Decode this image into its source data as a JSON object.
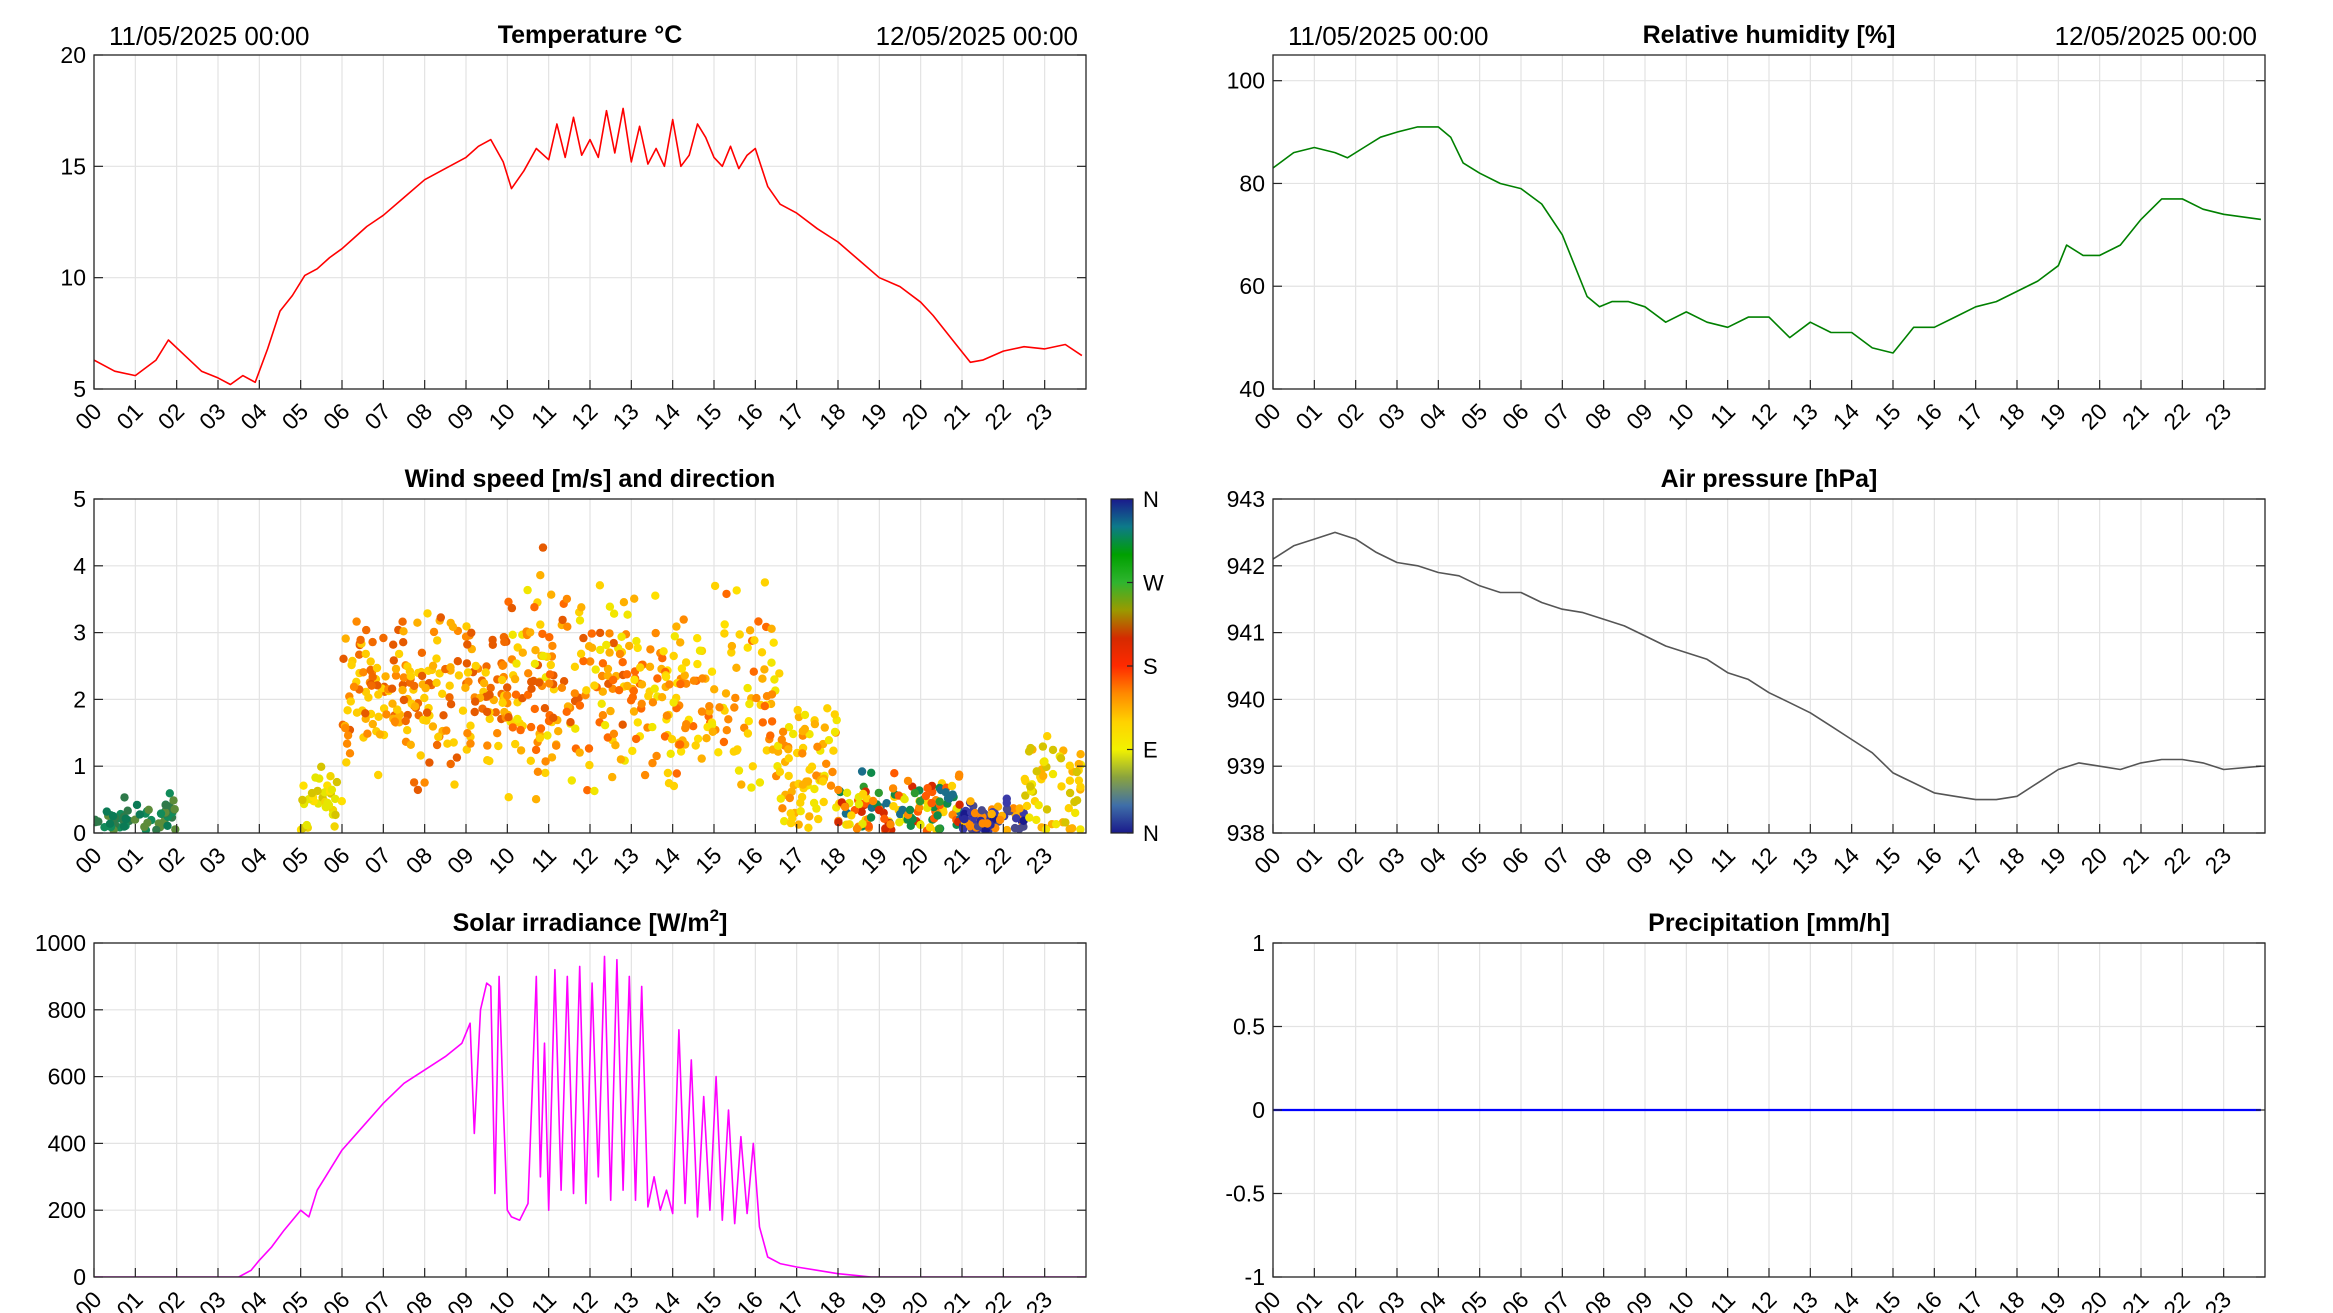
{
  "hour_labels": [
    "00",
    "01",
    "02",
    "03",
    "04",
    "05",
    "06",
    "07",
    "08",
    "09",
    "10",
    "11",
    "12",
    "13",
    "14",
    "15",
    "16",
    "17",
    "18",
    "19",
    "20",
    "21",
    "22",
    "23"
  ],
  "chart_data": [
    {
      "id": "temperature",
      "type": "line",
      "title": "Temperature °C",
      "date_start": "11/05/2025 00:00",
      "date_end": "12/05/2025 00:00",
      "color": "#ff0000",
      "ylim": [
        5,
        20
      ],
      "yticks": [
        5,
        10,
        15,
        20
      ],
      "x_hours": [
        0,
        0.5,
        1,
        1.5,
        1.8,
        2.2,
        2.6,
        3,
        3.3,
        3.6,
        3.9,
        4.2,
        4.5,
        4.8,
        5.1,
        5.4,
        5.7,
        6,
        6.3,
        6.6,
        7,
        7.5,
        8,
        8.5,
        9,
        9.3,
        9.6,
        9.9,
        10.1,
        10.4,
        10.7,
        11,
        11.2,
        11.4,
        11.6,
        11.8,
        12,
        12.2,
        12.4,
        12.6,
        12.8,
        13,
        13.2,
        13.4,
        13.6,
        13.8,
        14,
        14.2,
        14.4,
        14.6,
        14.8,
        15,
        15.2,
        15.4,
        15.6,
        15.8,
        16,
        16.3,
        16.6,
        17,
        17.5,
        18,
        18.5,
        19,
        19.5,
        20,
        20.3,
        20.6,
        20.9,
        21.2,
        21.5,
        22,
        22.5,
        23,
        23.5,
        23.9
      ],
      "values": [
        6.3,
        5.8,
        5.6,
        6.3,
        7.2,
        6.5,
        5.8,
        5.5,
        5.2,
        5.6,
        5.3,
        6.8,
        8.5,
        9.2,
        10.1,
        10.4,
        10.9,
        11.3,
        11.8,
        12.3,
        12.8,
        13.6,
        14.4,
        14.9,
        15.4,
        15.9,
        16.2,
        15.2,
        14.0,
        14.8,
        15.8,
        15.3,
        16.9,
        15.4,
        17.2,
        15.5,
        16.2,
        15.4,
        17.5,
        15.6,
        17.6,
        15.2,
        16.8,
        15.1,
        15.8,
        15.0,
        17.1,
        15.0,
        15.5,
        16.9,
        16.3,
        15.4,
        15.0,
        15.9,
        14.9,
        15.5,
        15.8,
        14.1,
        13.3,
        12.9,
        12.2,
        11.6,
        10.8,
        10.0,
        9.6,
        8.9,
        8.3,
        7.6,
        6.9,
        6.2,
        6.3,
        6.7,
        6.9,
        6.8,
        7.0,
        6.5
      ]
    },
    {
      "id": "humidity",
      "type": "line",
      "title": "Relative humidity [%]",
      "date_start": "11/05/2025 00:00",
      "date_end": "12/05/2025 00:00",
      "color": "#008000",
      "ylim": [
        40,
        105
      ],
      "yticks": [
        40,
        60,
        80,
        100
      ],
      "x_hours": [
        0,
        0.5,
        1,
        1.5,
        1.8,
        2.2,
        2.6,
        3,
        3.5,
        4,
        4.3,
        4.6,
        5,
        5.5,
        6,
        6.5,
        7,
        7.3,
        7.6,
        7.9,
        8.2,
        8.6,
        9,
        9.5,
        10,
        10.5,
        11,
        11.5,
        12,
        12.5,
        13,
        13.5,
        14,
        14.5,
        15,
        15.5,
        16,
        16.5,
        17,
        17.5,
        18,
        18.5,
        19,
        19.2,
        19.6,
        20,
        20.5,
        21,
        21.5,
        22,
        22.5,
        23,
        23.9
      ],
      "values": [
        83,
        86,
        87,
        86,
        85,
        87,
        89,
        90,
        91,
        91,
        89,
        84,
        82,
        80,
        79,
        76,
        70,
        64,
        58,
        56,
        57,
        57,
        56,
        53,
        55,
        53,
        52,
        54,
        54,
        50,
        53,
        51,
        51,
        48,
        47,
        52,
        52,
        54,
        56,
        57,
        59,
        61,
        64,
        68,
        66,
        66,
        68,
        73,
        77,
        77,
        75,
        74,
        73
      ]
    },
    {
      "id": "wind",
      "type": "scatter",
      "title": "Wind speed [m/s] and direction",
      "ylim": [
        0,
        5
      ],
      "yticks": [
        0,
        1,
        2,
        3,
        4,
        5
      ],
      "colorbar_labels": [
        "N",
        "E",
        "S",
        "W",
        "N"
      ],
      "colorbar_colors": [
        "#1a1a8c",
        "#3f6fa8",
        "#8aa33e",
        "#f2f200",
        "#ffd200",
        "#ff8a00",
        "#ff2a00",
        "#d52a00",
        "#9a9a00",
        "#2fb52f",
        "#00a000",
        "#0d7a8a",
        "#1a1a8c"
      ],
      "clusters": [
        {
          "x_range": [
            0,
            2
          ],
          "mean": 0.25,
          "spread": 0.15,
          "n": 60,
          "palette": [
            "#0b7a55",
            "#118b5a",
            "#2f7a4a",
            "#5c8c3a"
          ]
        },
        {
          "x_range": [
            5,
            6
          ],
          "mean": 0.55,
          "spread": 0.3,
          "n": 35,
          "palette": [
            "#e6e600",
            "#f2d500",
            "#d6c400",
            "#ffe000"
          ]
        },
        {
          "x_range": [
            6,
            8
          ],
          "mean": 2.0,
          "spread": 0.55,
          "n": 120,
          "palette": [
            "#ff8a00",
            "#ffb000",
            "#f26a00",
            "#ffd200",
            "#e65a00",
            "#ffcc00"
          ]
        },
        {
          "x_range": [
            8,
            10
          ],
          "mean": 2.2,
          "spread": 0.6,
          "n": 110,
          "palette": [
            "#ff8a00",
            "#ffb000",
            "#f26a00",
            "#ffd200",
            "#e65a00",
            "#ffcc00"
          ]
        },
        {
          "x_range": [
            10,
            13
          ],
          "mean": 2.2,
          "spread": 0.75,
          "n": 170,
          "palette": [
            "#ffb000",
            "#ffd200",
            "#ff8a00",
            "#f2e600",
            "#e65a00",
            "#ff6a00"
          ]
        },
        {
          "x_range": [
            13,
            16.5
          ],
          "mean": 2.1,
          "spread": 0.65,
          "n": 170,
          "palette": [
            "#ffd200",
            "#ffb000",
            "#ff8a00",
            "#f2e600",
            "#ff6a00",
            "#ffe000"
          ]
        },
        {
          "x_range": [
            16.5,
            18
          ],
          "mean": 1.0,
          "spread": 0.55,
          "n": 80,
          "palette": [
            "#ffd200",
            "#ffb000",
            "#ff8a00",
            "#f2e600"
          ]
        },
        {
          "x_range": [
            18,
            21
          ],
          "mean": 0.35,
          "spread": 0.25,
          "n": 140,
          "palette": [
            "#ff8a00",
            "#2f9a2f",
            "#1a6e8a",
            "#ffd200",
            "#d52a00",
            "#0f8a4a",
            "#e6e600",
            "#ff5a00"
          ]
        },
        {
          "x_range": [
            21,
            22.5
          ],
          "mean": 0.2,
          "spread": 0.15,
          "n": 80,
          "palette": [
            "#1a1a8c",
            "#2a2a9c",
            "#ff8a00",
            "#ffb000",
            "#3a3aa8",
            "#4a4a8c"
          ]
        },
        {
          "x_range": [
            22.5,
            23.9
          ],
          "mean": 0.75,
          "spread": 0.4,
          "n": 60,
          "palette": [
            "#ffd200",
            "#f2e600",
            "#ffb000",
            "#d6c400"
          ]
        }
      ]
    },
    {
      "id": "pressure",
      "type": "line",
      "title": "Air pressure [hPa]",
      "color": "#555555",
      "ylim": [
        938,
        943
      ],
      "yticks": [
        938,
        939,
        940,
        941,
        942,
        943
      ],
      "x_hours": [
        0,
        0.5,
        1,
        1.5,
        2,
        2.5,
        3,
        3.5,
        4,
        4.5,
        5,
        5.5,
        6,
        6.5,
        7,
        7.5,
        8,
        8.5,
        9,
        9.5,
        10,
        10.5,
        11,
        11.5,
        12,
        12.5,
        13,
        13.5,
        14,
        14.5,
        15,
        15.5,
        16,
        16.5,
        17,
        17.5,
        18,
        18.5,
        19,
        19.5,
        20,
        20.5,
        21,
        21.5,
        22,
        22.5,
        23,
        23.9
      ],
      "values": [
        942.1,
        942.3,
        942.4,
        942.5,
        942.4,
        942.2,
        942.05,
        942.0,
        941.9,
        941.85,
        941.7,
        941.6,
        941.6,
        941.45,
        941.35,
        941.3,
        941.2,
        941.1,
        940.95,
        940.8,
        940.7,
        940.6,
        940.4,
        940.3,
        940.1,
        939.95,
        939.8,
        939.6,
        939.4,
        939.2,
        938.9,
        938.75,
        938.6,
        938.55,
        938.5,
        938.5,
        938.55,
        938.75,
        938.95,
        939.05,
        939.0,
        938.95,
        939.05,
        939.1,
        939.1,
        939.05,
        938.95,
        939.0
      ]
    },
    {
      "id": "solar",
      "type": "line",
      "title": "Solar irradiance [W/m",
      "title_superscript": "2",
      "title_suffix": "]",
      "color": "#ff00ff",
      "ylim": [
        0,
        1000
      ],
      "yticks": [
        0,
        200,
        400,
        600,
        800,
        1000
      ],
      "x_hours": [
        0,
        3.5,
        3.8,
        4,
        4.3,
        4.6,
        5,
        5.2,
        5.4,
        5.6,
        6,
        6.5,
        7,
        7.5,
        8,
        8.5,
        8.9,
        9.1,
        9.2,
        9.35,
        9.5,
        9.6,
        9.7,
        9.8,
        9.9,
        10,
        10.1,
        10.3,
        10.5,
        10.6,
        10.7,
        10.8,
        10.9,
        11,
        11.15,
        11.3,
        11.45,
        11.6,
        11.75,
        11.9,
        12.05,
        12.2,
        12.35,
        12.5,
        12.65,
        12.8,
        12.95,
        13.1,
        13.25,
        13.4,
        13.55,
        13.7,
        13.85,
        14,
        14.15,
        14.3,
        14.45,
        14.6,
        14.75,
        14.9,
        15.05,
        15.2,
        15.35,
        15.5,
        15.65,
        15.8,
        15.95,
        16.1,
        16.3,
        16.6,
        17,
        17.5,
        18,
        18.4,
        18.8,
        19.5,
        24
      ],
      "values": [
        0,
        0,
        20,
        50,
        90,
        140,
        200,
        180,
        260,
        300,
        380,
        450,
        520,
        580,
        620,
        660,
        700,
        760,
        430,
        800,
        880,
        870,
        250,
        900,
        520,
        200,
        180,
        170,
        220,
        550,
        900,
        300,
        700,
        200,
        920,
        260,
        900,
        250,
        930,
        220,
        880,
        300,
        960,
        230,
        950,
        260,
        900,
        230,
        870,
        210,
        300,
        200,
        260,
        190,
        740,
        220,
        650,
        180,
        540,
        200,
        600,
        170,
        500,
        160,
        420,
        190,
        400,
        150,
        60,
        40,
        30,
        20,
        10,
        5,
        0,
        0,
        0
      ]
    },
    {
      "id": "precipitation",
      "type": "line",
      "title": "Precipitation [mm/h]",
      "color": "#0000ff",
      "ylim": [
        -1,
        1
      ],
      "yticks": [
        -1,
        -0.5,
        0,
        0.5,
        1
      ],
      "x_hours": [
        0,
        23.9
      ],
      "values": [
        0,
        0
      ]
    }
  ]
}
